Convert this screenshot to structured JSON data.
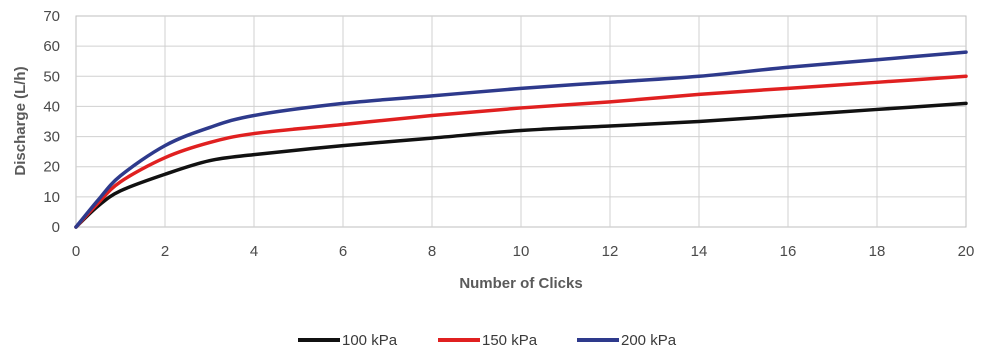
{
  "chart_data": {
    "type": "line",
    "xlabel": "Number of Clicks",
    "ylabel": "Discharge  (L/h)",
    "xlim": [
      0,
      20
    ],
    "ylim": [
      0,
      70
    ],
    "x_ticks": [
      0,
      2,
      4,
      6,
      8,
      10,
      12,
      14,
      16,
      18,
      20
    ],
    "y_ticks": [
      0,
      10,
      20,
      30,
      40,
      50,
      60,
      70
    ],
    "grid": true,
    "legend_position": "bottom",
    "series": [
      {
        "name": "100 kPa",
        "color": "#111111",
        "x": [
          0,
          0.5,
          1,
          2,
          3,
          4,
          6,
          8,
          10,
          12,
          14,
          16,
          18,
          20
        ],
        "y": [
          0,
          7,
          12,
          17.5,
          22,
          24,
          27,
          29.5,
          32,
          33.5,
          35,
          37,
          39,
          41
        ]
      },
      {
        "name": "150 kPa",
        "color": "#e02020",
        "x": [
          0,
          0.5,
          1,
          2,
          3,
          4,
          6,
          8,
          10,
          12,
          14,
          16,
          18,
          20
        ],
        "y": [
          0,
          8,
          15,
          23,
          28,
          31,
          34,
          37,
          39.5,
          41.5,
          44,
          46,
          48,
          50
        ]
      },
      {
        "name": "200 kPa",
        "color": "#2e3a8c",
        "x": [
          0,
          0.5,
          1,
          2,
          3,
          4,
          6,
          8,
          10,
          12,
          14,
          16,
          18,
          20
        ],
        "y": [
          0,
          9,
          17,
          27,
          33,
          37,
          41,
          43.5,
          46,
          48,
          50,
          53,
          55.5,
          58
        ]
      }
    ]
  }
}
